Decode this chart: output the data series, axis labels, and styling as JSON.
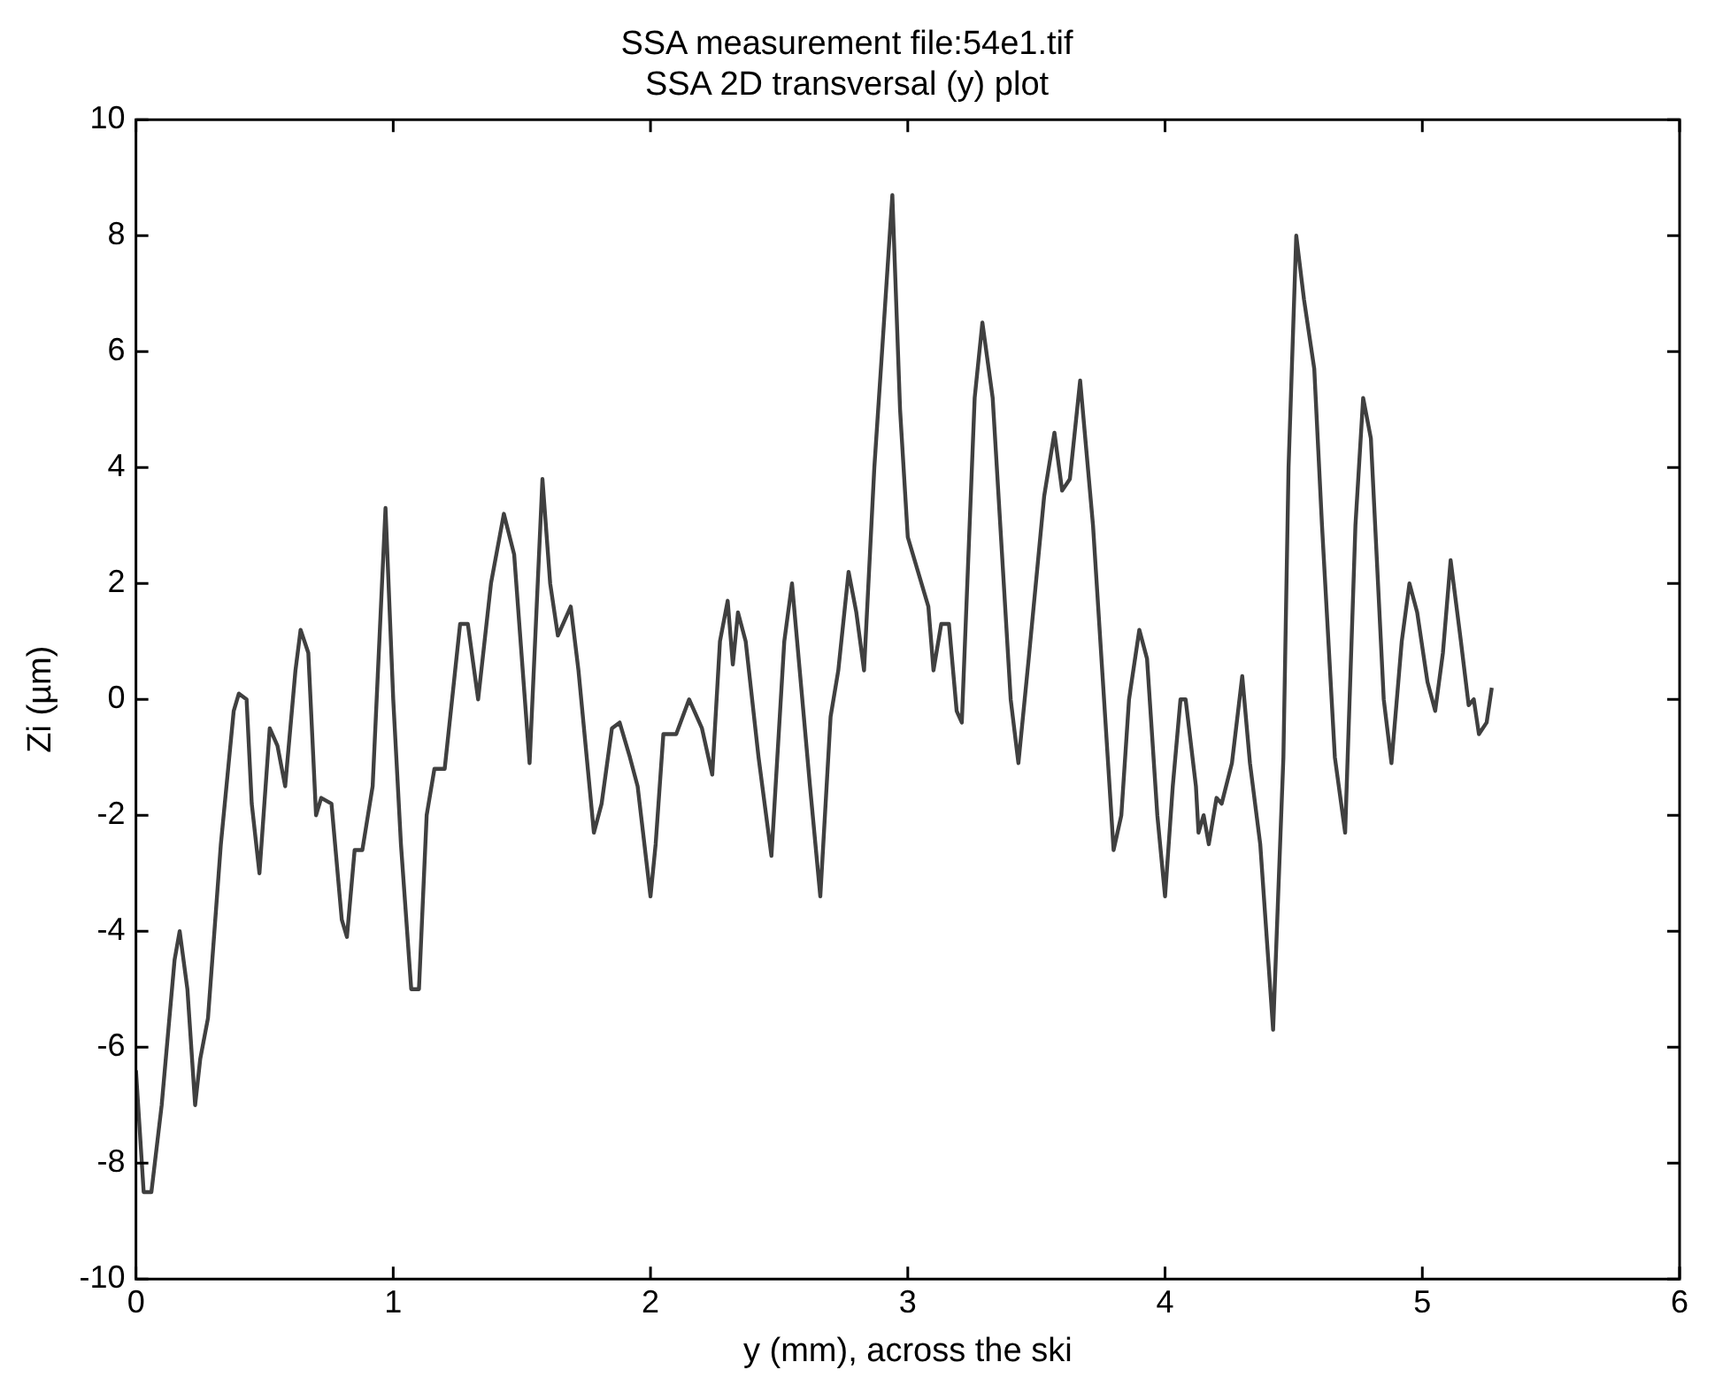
{
  "chart_data": {
    "type": "line",
    "title": "SSA measurement file:54e1.tif",
    "subtitle": "SSA 2D transversal (y) plot",
    "xlabel": "y (mm), across the ski",
    "ylabel": "Zi (µm)",
    "xlim": [
      0,
      6
    ],
    "xticks": [
      0,
      1,
      2,
      3,
      4,
      5,
      6
    ],
    "ylim": [
      -10,
      10
    ],
    "yticks": [
      -10,
      -8,
      -6,
      -4,
      -2,
      0,
      2,
      4,
      6,
      8,
      10
    ],
    "grid": false,
    "marker": "none",
    "line_style": "solid",
    "series": [
      {
        "color": "#404040",
        "x": [
          0,
          0.03,
          0.06,
          0.1,
          0.15,
          0.17,
          0.2,
          0.23,
          0.25,
          0.28,
          0.33,
          0.38,
          0.4,
          0.43,
          0.45,
          0.48,
          0.52,
          0.55,
          0.58,
          0.62,
          0.64,
          0.67,
          0.7,
          0.72,
          0.76,
          0.8,
          0.82,
          0.85,
          0.88,
          0.92,
          0.97,
          1.0,
          1.03,
          1.07,
          1.1,
          1.13,
          1.16,
          1.2,
          1.26,
          1.29,
          1.33,
          1.38,
          1.43,
          1.47,
          1.53,
          1.58,
          1.61,
          1.64,
          1.69,
          1.72,
          1.78,
          1.81,
          1.85,
          1.88,
          1.92,
          1.95,
          2.0,
          2.02,
          2.05,
          2.1,
          2.15,
          2.2,
          2.24,
          2.27,
          2.3,
          2.32,
          2.34,
          2.37,
          2.42,
          2.47,
          2.52,
          2.55,
          2.58,
          2.62,
          2.66,
          2.7,
          2.73,
          2.77,
          2.8,
          2.83,
          2.87,
          2.9,
          2.94,
          2.97,
          3.0,
          3.04,
          3.08,
          3.1,
          3.13,
          3.16,
          3.19,
          3.21,
          3.26,
          3.29,
          3.33,
          3.4,
          3.43,
          3.47,
          3.53,
          3.57,
          3.6,
          3.63,
          3.67,
          3.72,
          3.78,
          3.8,
          3.83,
          3.86,
          3.9,
          3.93,
          3.97,
          4.0,
          4.03,
          4.06,
          4.08,
          4.12,
          4.13,
          4.15,
          4.17,
          4.2,
          4.22,
          4.26,
          4.3,
          4.33,
          4.37,
          4.42,
          4.46,
          4.48,
          4.51,
          4.54,
          4.58,
          4.61,
          4.66,
          4.7,
          4.74,
          4.77,
          4.8,
          4.85,
          4.88,
          4.92,
          4.95,
          4.98,
          5.02,
          5.05,
          5.08,
          5.11,
          5.15,
          5.18,
          5.2,
          5.22,
          5.25,
          5.27
        ],
        "values": [
          -6.4,
          -8.5,
          -8.5,
          -7,
          -4.5,
          -4,
          -5,
          -7,
          -6.2,
          -5.5,
          -2.5,
          -0.2,
          0.1,
          0,
          -1.8,
          -3,
          -0.5,
          -0.8,
          -1.5,
          0.5,
          1.2,
          0.8,
          -2,
          -1.7,
          -1.8,
          -3.8,
          -4.1,
          -2.6,
          -2.6,
          -1.5,
          3.3,
          0,
          -2.5,
          -5,
          -5,
          -2,
          -1.2,
          -1.2,
          1.3,
          1.3,
          0,
          2,
          3.2,
          2.5,
          -1.1,
          3.8,
          2,
          1.1,
          1.6,
          0.5,
          -2.3,
          -1.8,
          -0.5,
          -0.4,
          -1,
          -1.5,
          -3.4,
          -2.5,
          -0.6,
          -0.6,
          0,
          -0.5,
          -1.3,
          1,
          1.7,
          0.6,
          1.5,
          1,
          -1,
          -2.7,
          1,
          2,
          0.5,
          -1.5,
          -3.4,
          -0.3,
          0.5,
          2.2,
          1.5,
          0.5,
          4,
          6,
          8.7,
          5,
          2.8,
          2.2,
          1.6,
          0.5,
          1.3,
          1.3,
          -0.2,
          -0.4,
          5.2,
          6.5,
          5.2,
          0,
          -1.1,
          0.7,
          3.5,
          4.6,
          3.6,
          3.8,
          5.5,
          3,
          -1.2,
          -2.6,
          -2,
          0,
          1.2,
          0.7,
          -2,
          -3.4,
          -1.5,
          0,
          0,
          -1.5,
          -2.3,
          -2,
          -2.5,
          -1.7,
          -1.8,
          -1.1,
          0.4,
          -1.1,
          -2.5,
          -5.7,
          -1,
          4,
          8,
          6.9,
          5.7,
          3,
          -1,
          -2.3,
          3,
          5.2,
          4.5,
          0,
          -1.1,
          1,
          2,
          1.5,
          0.3,
          -0.2,
          0.8,
          2.4,
          1,
          -0.1,
          0,
          -0.6,
          -0.4,
          0.2
        ]
      }
    ]
  }
}
